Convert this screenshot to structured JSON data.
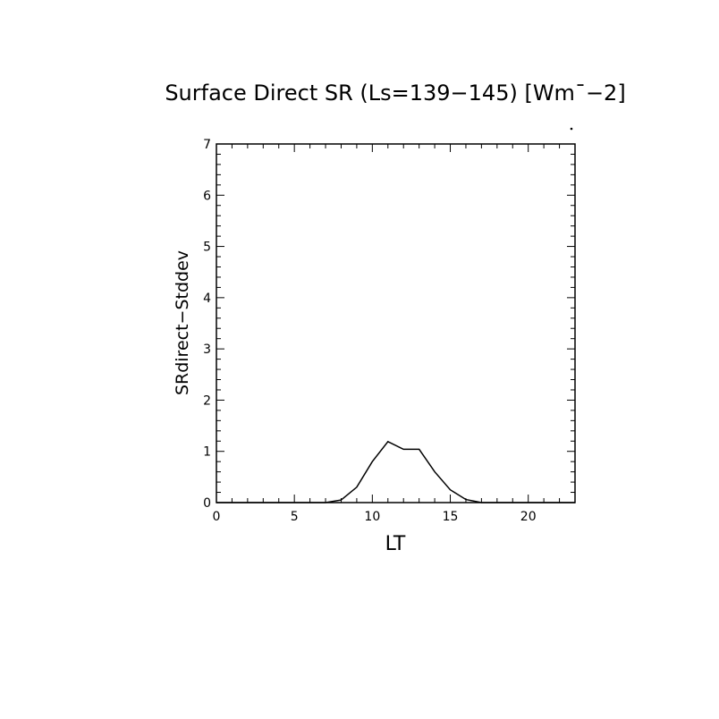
{
  "chart_data": {
    "type": "line",
    "title": "Surface Direct SR (Ls=139−145) [Wm¯−2]",
    "xlabel": "LT",
    "ylabel": "SRdirect−Stddev",
    "xlim": [
      0,
      23
    ],
    "ylim": [
      0,
      7
    ],
    "x_ticks": [
      0,
      5,
      10,
      15,
      20
    ],
    "y_ticks": [
      0,
      1,
      2,
      3,
      4,
      5,
      6,
      7
    ],
    "grid": false,
    "series": [
      {
        "x": [
          0,
          1,
          2,
          3,
          4,
          5,
          6,
          7,
          8,
          9,
          10,
          11,
          12,
          13,
          14,
          15,
          16,
          17,
          18,
          19,
          20,
          21,
          22,
          23
        ],
        "values": [
          0,
          0,
          0,
          0,
          0,
          0,
          0,
          0,
          0.05,
          0.3,
          0.8,
          1.19,
          1.04,
          1.04,
          0.6,
          0.25,
          0.06,
          0,
          0,
          0,
          0,
          0,
          0,
          0
        ]
      }
    ]
  },
  "colors": {
    "axis": "#000000",
    "line": "#000000",
    "background": "#ffffff"
  }
}
